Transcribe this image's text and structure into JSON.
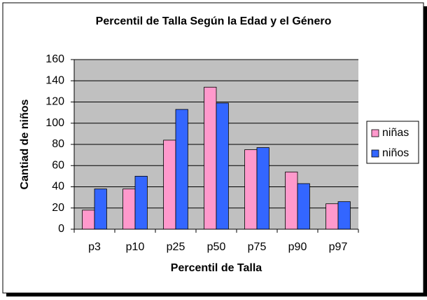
{
  "chart_data": {
    "type": "bar",
    "title": "Percentil de Talla Según la Edad y el Género",
    "x_label": "Percentil de Talla",
    "y_label": "Cantiad de niños",
    "categories": [
      "p3",
      "p10",
      "p25",
      "p50",
      "p75",
      "p90",
      "p97"
    ],
    "series": [
      {
        "name": "niñas",
        "color": "#ff99cc",
        "values": [
          18,
          38,
          84,
          134,
          75,
          54,
          24
        ]
      },
      {
        "name": "niños",
        "color": "#3366ff",
        "values": [
          38,
          50,
          113,
          119,
          77,
          43,
          26
        ]
      }
    ],
    "ylim": [
      0,
      160
    ],
    "yticks": [
      0,
      20,
      40,
      60,
      80,
      100,
      120,
      140,
      160
    ],
    "grid": true,
    "legend": "right"
  }
}
